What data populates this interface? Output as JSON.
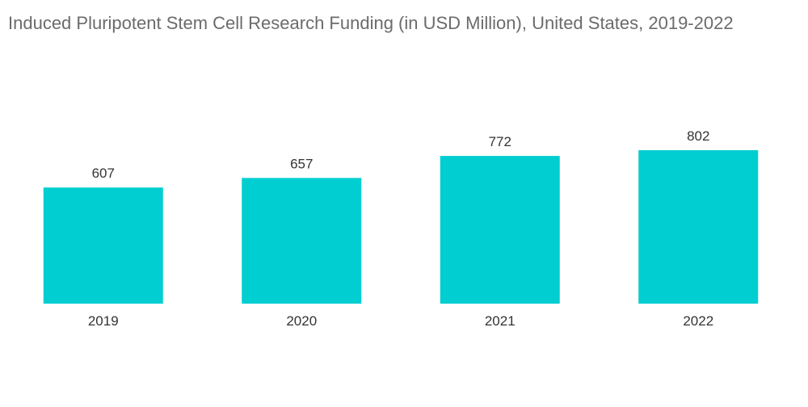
{
  "title": "Induced Pluripotent Stem Cell Research Funding (in USD Million), United States, 2019-2022",
  "chart_data": {
    "type": "bar",
    "title": "Induced Pluripotent Stem Cell Research Funding (in USD Million), United States, 2019-2022",
    "categories": [
      "2019",
      "2020",
      "2021",
      "2022"
    ],
    "values": [
      607,
      657,
      772,
      802
    ],
    "xlabel": "",
    "ylabel": "",
    "ylim": [
      0,
      802
    ],
    "grid": false,
    "data_labels": true,
    "bar_color": "#00CED1"
  }
}
